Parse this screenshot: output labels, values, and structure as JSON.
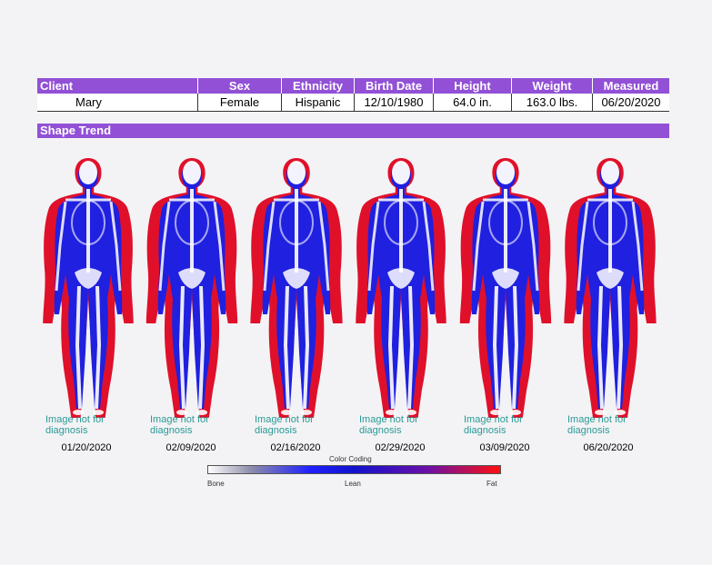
{
  "table": {
    "headers": [
      "Client",
      "Sex",
      "Ethnicity",
      "Birth Date",
      "Height",
      "Weight",
      "Measured"
    ],
    "values": [
      "Mary",
      "Female",
      "Hispanic",
      "12/10/1980",
      "64.0 in.",
      "163.0 lbs.",
      "06/20/2020"
    ]
  },
  "section_title": "Shape Trend",
  "scans": [
    {
      "date": "01/20/2020",
      "note": "Image not for diagnosis"
    },
    {
      "date": "02/09/2020",
      "note": "Image not for diagnosis"
    },
    {
      "date": "02/16/2020",
      "note": "Image not for diagnosis"
    },
    {
      "date": "02/29/2020",
      "note": "Image not for diagnosis"
    },
    {
      "date": "03/09/2020",
      "note": "Image not for diagnosis"
    },
    {
      "date": "06/20/2020",
      "note": "Image not for diagnosis"
    }
  ],
  "legend": {
    "title": "Color Coding",
    "labels": [
      "Bone",
      "Lean",
      "Fat"
    ]
  },
  "colors": {
    "header_purple": "#9150d6",
    "fat_red": "#e0102a",
    "lean_blue": "#2020e0",
    "bone_white": "#ffffff",
    "note_teal": "#2a9a96"
  }
}
